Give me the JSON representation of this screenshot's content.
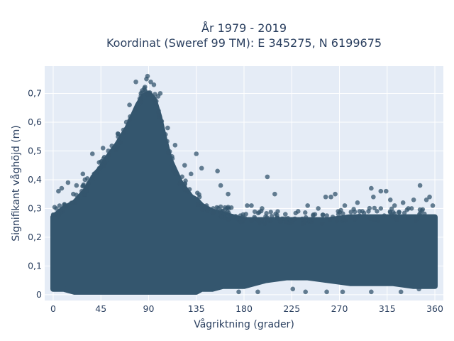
{
  "chart_data": {
    "type": "scatter",
    "title_line1": "År 1979 - 2019",
    "title_line2": "Koordinat (Sweref 99 TM): E 345275, N 6199675",
    "xlabel": "Vågriktning (grader)",
    "ylabel": "Signifikant våghöjd (m)",
    "xlim": [
      -8,
      368
    ],
    "ylim": [
      -0.02,
      0.795
    ],
    "x_ticks": [
      0,
      45,
      90,
      135,
      180,
      225,
      270,
      315,
      360
    ],
    "x_tick_labels": [
      "0",
      "45",
      "90",
      "135",
      "180",
      "225",
      "270",
      "315",
      "360"
    ],
    "y_ticks": [
      0,
      0.1,
      0.2,
      0.3,
      0.4,
      0.5,
      0.6,
      0.7
    ],
    "y_tick_labels": [
      "0",
      "0,1",
      "0,2",
      "0,3",
      "0,4",
      "0,5",
      "0,6",
      "0,7"
    ],
    "grid": true,
    "colors": {
      "marker": "#34566e",
      "plot_bg": "#e5ecf6",
      "grid": "#ffffff",
      "text": "#2a3f5f"
    },
    "envelope": {
      "x": [
        0,
        10,
        20,
        30,
        40,
        45,
        50,
        60,
        70,
        75,
        80,
        85,
        90,
        95,
        100,
        105,
        110,
        120,
        130,
        135,
        140,
        150,
        160,
        170,
        180,
        190,
        200,
        220,
        240,
        260,
        280,
        300,
        320,
        340,
        360
      ],
      "y_upper": [
        0.27,
        0.3,
        0.32,
        0.36,
        0.42,
        0.44,
        0.47,
        0.52,
        0.58,
        0.62,
        0.66,
        0.69,
        0.7,
        0.68,
        0.62,
        0.54,
        0.47,
        0.39,
        0.34,
        0.33,
        0.31,
        0.29,
        0.28,
        0.27,
        0.26,
        0.26,
        0.26,
        0.26,
        0.26,
        0.26,
        0.27,
        0.27,
        0.27,
        0.27,
        0.27
      ],
      "y_lower": [
        0.02,
        0.02,
        0.01,
        0.01,
        0.01,
        0.01,
        0.01,
        0.01,
        0.01,
        0.01,
        0.01,
        0.01,
        0.01,
        0.01,
        0.01,
        0.01,
        0.01,
        0.01,
        0.01,
        0.01,
        0.02,
        0.02,
        0.03,
        0.03,
        0.03,
        0.04,
        0.05,
        0.06,
        0.06,
        0.05,
        0.04,
        0.04,
        0.04,
        0.03,
        0.03
      ]
    },
    "outliers": [
      {
        "x": 89,
        "y": 0.76
      },
      {
        "x": 92,
        "y": 0.74
      },
      {
        "x": 88,
        "y": 0.75
      },
      {
        "x": 101,
        "y": 0.7
      },
      {
        "x": 78,
        "y": 0.74
      },
      {
        "x": 95,
        "y": 0.73
      },
      {
        "x": 84,
        "y": 0.71
      },
      {
        "x": 99,
        "y": 0.69
      },
      {
        "x": 72,
        "y": 0.66
      },
      {
        "x": 69,
        "y": 0.6
      },
      {
        "x": 108,
        "y": 0.58
      },
      {
        "x": 115,
        "y": 0.52
      },
      {
        "x": 37,
        "y": 0.49
      },
      {
        "x": 47,
        "y": 0.51
      },
      {
        "x": 52,
        "y": 0.5
      },
      {
        "x": 61,
        "y": 0.56
      },
      {
        "x": 135,
        "y": 0.49
      },
      {
        "x": 124,
        "y": 0.45
      },
      {
        "x": 140,
        "y": 0.44
      },
      {
        "x": 155,
        "y": 0.43
      },
      {
        "x": 130,
        "y": 0.42
      },
      {
        "x": 158,
        "y": 0.38
      },
      {
        "x": 165,
        "y": 0.35
      },
      {
        "x": 202,
        "y": 0.41
      },
      {
        "x": 209,
        "y": 0.35
      },
      {
        "x": 187,
        "y": 0.31
      },
      {
        "x": 183,
        "y": 0.31
      },
      {
        "x": 8,
        "y": 0.37
      },
      {
        "x": 5,
        "y": 0.36
      },
      {
        "x": 14,
        "y": 0.39
      },
      {
        "x": 22,
        "y": 0.38
      },
      {
        "x": 27,
        "y": 0.36
      },
      {
        "x": 28,
        "y": 0.42
      },
      {
        "x": 30,
        "y": 0.4
      },
      {
        "x": 19,
        "y": 0.35
      },
      {
        "x": 262,
        "y": 0.34
      },
      {
        "x": 266,
        "y": 0.35
      },
      {
        "x": 257,
        "y": 0.34
      },
      {
        "x": 240,
        "y": 0.31
      },
      {
        "x": 300,
        "y": 0.37
      },
      {
        "x": 302,
        "y": 0.34
      },
      {
        "x": 309,
        "y": 0.36
      },
      {
        "x": 314,
        "y": 0.36
      },
      {
        "x": 318,
        "y": 0.33
      },
      {
        "x": 340,
        "y": 0.33
      },
      {
        "x": 346,
        "y": 0.38
      },
      {
        "x": 355,
        "y": 0.34
      },
      {
        "x": 352,
        "y": 0.33
      },
      {
        "x": 330,
        "y": 0.32
      },
      {
        "x": 287,
        "y": 0.32
      },
      {
        "x": 289,
        "y": 0.29
      },
      {
        "x": 231,
        "y": 0.29
      },
      {
        "x": 219,
        "y": 0.28
      },
      {
        "x": 197,
        "y": 0.3
      },
      {
        "x": 250,
        "y": 0.3
      },
      {
        "x": 275,
        "y": 0.31
      },
      {
        "x": 322,
        "y": 0.31
      },
      {
        "x": 335,
        "y": 0.3
      },
      {
        "x": 358,
        "y": 0.31
      },
      {
        "x": 226,
        "y": 0.02
      },
      {
        "x": 238,
        "y": 0.01
      },
      {
        "x": 258,
        "y": 0.01
      },
      {
        "x": 273,
        "y": 0.01
      },
      {
        "x": 300,
        "y": 0.01
      },
      {
        "x": 328,
        "y": 0.01
      },
      {
        "x": 345,
        "y": 0.02
      },
      {
        "x": 175,
        "y": 0.01
      },
      {
        "x": 193,
        "y": 0.01
      }
    ]
  }
}
